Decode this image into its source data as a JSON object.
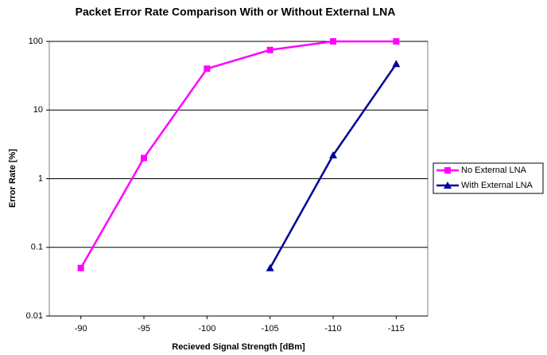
{
  "chart_data": {
    "type": "line",
    "title": "Packet Error Rate Comparison With or Without External LNA",
    "x_label": "Recieved Signal Strength [dBm]",
    "y_label": "Error Rate [%]",
    "x": [
      -90,
      -95,
      -100,
      -105,
      -110,
      -115
    ],
    "xlim": [
      -87.5,
      -117.5
    ],
    "xticks": [
      -90,
      -95,
      -100,
      -105,
      -110,
      -115
    ],
    "ylim": [
      0.01,
      100
    ],
    "yticks": [
      100,
      10,
      1,
      0.1,
      0.01
    ],
    "y_scale": "log",
    "grid": true,
    "legend": "right",
    "series": [
      {
        "name": "No External LNA",
        "color": "#ff00ff",
        "marker": "square",
        "values": [
          0.05,
          2,
          40,
          75,
          100,
          100
        ]
      },
      {
        "name": "With External LNA",
        "color": "#000099",
        "marker": "triangle",
        "values": [
          null,
          null,
          null,
          0.05,
          2.2,
          47
        ]
      }
    ]
  }
}
